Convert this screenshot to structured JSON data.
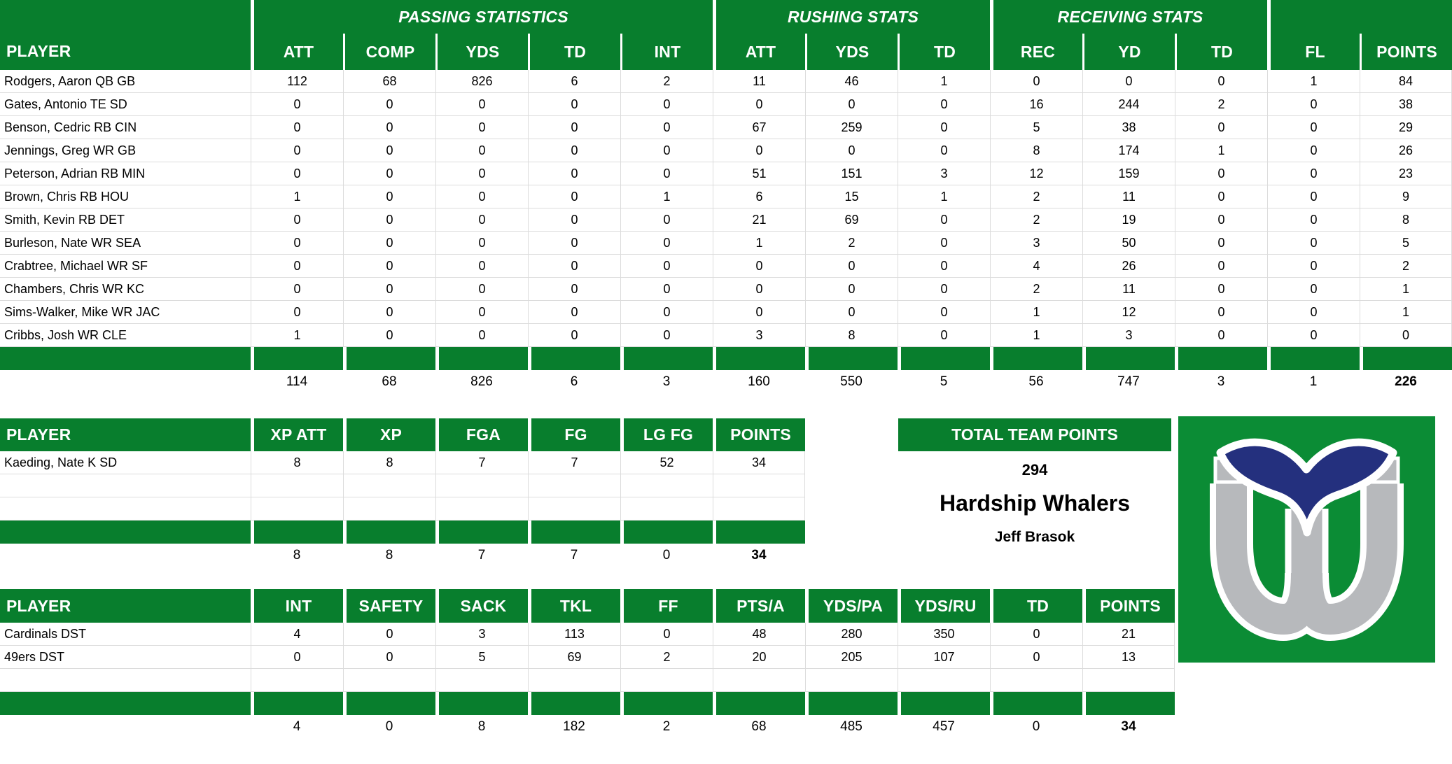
{
  "colors": {
    "header_green": "#087e2d",
    "row_border_gray": "#dcdcdc",
    "logo_green": "#0b8c35",
    "logo_blue": "#24307e",
    "logo_gray": "#b7b9bc"
  },
  "offense_table": {
    "player_header": "PLAYER",
    "group_headers": [
      {
        "label": "PASSING STATISTICS",
        "span": 5
      },
      {
        "label": "RUSHING STATS",
        "span": 3
      },
      {
        "label": "RECEIVING STATS",
        "span": 3
      },
      {
        "label": "",
        "span": 2
      }
    ],
    "columns": [
      "ATT",
      "COMP",
      "YDS",
      "TD",
      "INT",
      "ATT",
      "YDS",
      "TD",
      "REC",
      "YD",
      "TD",
      "FL",
      "POINTS"
    ],
    "rows": [
      {
        "player": "Rodgers, Aaron QB GB",
        "values": [
          "112",
          "68",
          "826",
          "6",
          "2",
          "11",
          "46",
          "1",
          "0",
          "0",
          "0",
          "1",
          "84"
        ]
      },
      {
        "player": "Gates, Antonio TE SD",
        "values": [
          "0",
          "0",
          "0",
          "0",
          "0",
          "0",
          "0",
          "0",
          "16",
          "244",
          "2",
          "0",
          "38"
        ]
      },
      {
        "player": "Benson, Cedric RB CIN",
        "values": [
          "0",
          "0",
          "0",
          "0",
          "0",
          "67",
          "259",
          "0",
          "5",
          "38",
          "0",
          "0",
          "29"
        ]
      },
      {
        "player": "Jennings, Greg WR GB",
        "values": [
          "0",
          "0",
          "0",
          "0",
          "0",
          "0",
          "0",
          "0",
          "8",
          "174",
          "1",
          "0",
          "26"
        ]
      },
      {
        "player": "Peterson, Adrian RB MIN",
        "values": [
          "0",
          "0",
          "0",
          "0",
          "0",
          "51",
          "151",
          "3",
          "12",
          "159",
          "0",
          "0",
          "23"
        ]
      },
      {
        "player": "Brown, Chris RB HOU",
        "values": [
          "1",
          "0",
          "0",
          "0",
          "1",
          "6",
          "15",
          "1",
          "2",
          "11",
          "0",
          "0",
          "9"
        ]
      },
      {
        "player": "Smith, Kevin RB DET",
        "values": [
          "0",
          "0",
          "0",
          "0",
          "0",
          "21",
          "69",
          "0",
          "2",
          "19",
          "0",
          "0",
          "8"
        ]
      },
      {
        "player": "Burleson, Nate WR SEA",
        "values": [
          "0",
          "0",
          "0",
          "0",
          "0",
          "1",
          "2",
          "0",
          "3",
          "50",
          "0",
          "0",
          "5"
        ]
      },
      {
        "player": "Crabtree, Michael WR SF",
        "values": [
          "0",
          "0",
          "0",
          "0",
          "0",
          "0",
          "0",
          "0",
          "4",
          "26",
          "0",
          "0",
          "2"
        ]
      },
      {
        "player": "Chambers, Chris WR KC",
        "values": [
          "0",
          "0",
          "0",
          "0",
          "0",
          "0",
          "0",
          "0",
          "2",
          "11",
          "0",
          "0",
          "1"
        ]
      },
      {
        "player": "Sims-Walker, Mike WR JAC",
        "values": [
          "0",
          "0",
          "0",
          "0",
          "0",
          "0",
          "0",
          "0",
          "1",
          "12",
          "0",
          "0",
          "1"
        ]
      },
      {
        "player": "Cribbs, Josh WR CLE",
        "values": [
          "1",
          "0",
          "0",
          "0",
          "0",
          "3",
          "8",
          "0",
          "1",
          "3",
          "0",
          "0",
          "0"
        ]
      }
    ],
    "empty_rows": 0,
    "totals": [
      "114",
      "68",
      "826",
      "6",
      "3",
      "160",
      "550",
      "5",
      "56",
      "747",
      "3",
      "1",
      "226"
    ]
  },
  "kicker_table": {
    "player_header": "PLAYER",
    "columns": [
      "XP ATT",
      "XP",
      "FGA",
      "FG",
      "LG FG",
      "POINTS"
    ],
    "rows": [
      {
        "player": "Kaeding, Nate K SD",
        "values": [
          "8",
          "8",
          "7",
          "7",
          "52",
          "34"
        ]
      }
    ],
    "empty_rows": 2,
    "totals": [
      "8",
      "8",
      "7",
      "7",
      "0",
      "34"
    ]
  },
  "team_summary": {
    "header": "TOTAL TEAM POINTS",
    "total_points": "294",
    "team_name": "Hardship Whalers",
    "owner": "Jeff Brasok"
  },
  "defense_table": {
    "player_header": "PLAYER",
    "columns": [
      "INT",
      "SAFETY",
      "SACK",
      "TKL",
      "FF",
      "PTS/A",
      "YDS/PA",
      "YDS/RU",
      "TD",
      "POINTS"
    ],
    "rows": [
      {
        "player": "Cardinals DST",
        "values": [
          "4",
          "0",
          "3",
          "113",
          "0",
          "48",
          "280",
          "350",
          "0",
          "21"
        ]
      },
      {
        "player": "49ers DST",
        "values": [
          "0",
          "0",
          "5",
          "69",
          "2",
          "20",
          "205",
          "107",
          "0",
          "13"
        ]
      }
    ],
    "empty_rows": 1,
    "totals": [
      "4",
      "0",
      "8",
      "182",
      "2",
      "68",
      "485",
      "457",
      "0",
      "34"
    ]
  },
  "logo": {
    "name": "hartford-whalers-logo"
  }
}
